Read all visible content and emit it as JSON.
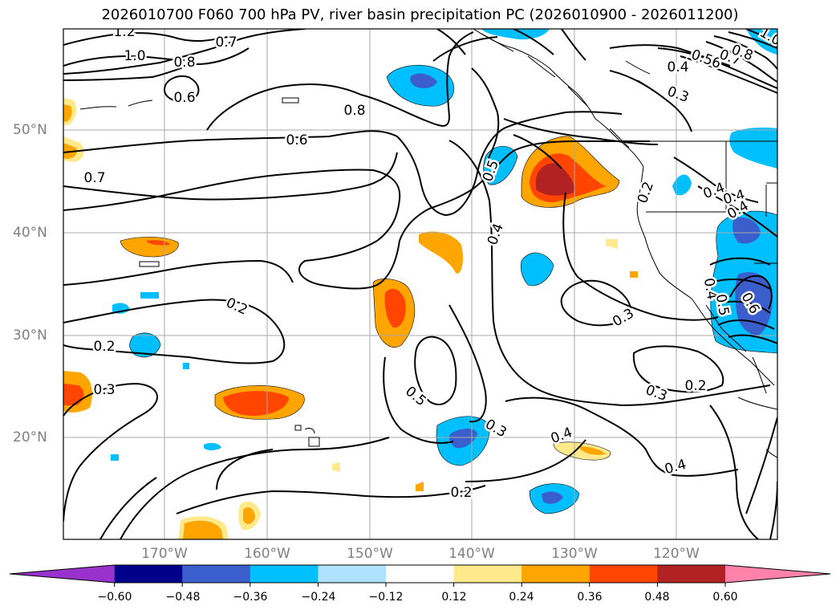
{
  "title": "2026010700 F060 700 hPa PV, river basin precipitation PC (2026010900 - 2026011200)",
  "lat_labels": [
    "50°N",
    "40°N",
    "30°N",
    "20°N"
  ],
  "lon_labels": [
    "170°W",
    "160°W",
    "150°W",
    "140°W",
    "130°W",
    "120°W"
  ],
  "contour_labels": [
    "1.2",
    "1.0",
    "0.8",
    "0.7",
    "0.6",
    "0.8",
    "0.6",
    "0.7",
    "0.5",
    "0.4",
    "0.2",
    "0.2",
    "0.3",
    "0.5",
    "0.3",
    "0.4",
    "0.3",
    "0.2",
    "0.3",
    "0.4",
    "0.2",
    "0.2",
    "0.4",
    "0.3",
    "0.4",
    "0.56",
    "0.7",
    "0.8",
    "0.4",
    "0.4",
    "0.6",
    "0.4",
    "0.5",
    "1.0"
  ],
  "colorbar": {
    "tick_labels": [
      "−0.60",
      "−0.48",
      "−0.36",
      "−0.24",
      "−0.12",
      "0.12",
      "0.24",
      "0.36",
      "0.48",
      "0.60"
    ],
    "colors": [
      "#9932cc",
      "#00008b",
      "#3a5fcd",
      "#00bfff",
      "#b0e2ff",
      "#ffffff",
      "#ffe98a",
      "#ffa500",
      "#ff4500",
      "#b22222",
      "#ff82ab"
    ]
  },
  "colors": {
    "ocean": "#ffffff",
    "land_line": "#000000",
    "grid": "#a9a9a9",
    "contour": "#000000",
    "axis_label": "#808080"
  }
}
